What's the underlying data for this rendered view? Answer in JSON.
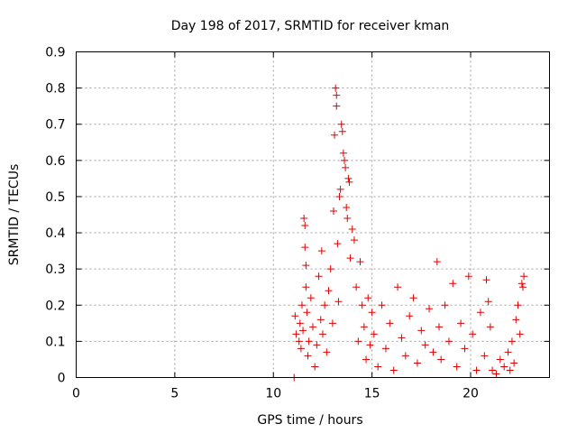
{
  "chart_data": {
    "type": "scatter",
    "title": "Day 198 of 2017, SRMTID for receiver kman",
    "xlabel": "GPS time / hours",
    "ylabel": "SRMTID / TECUs",
    "xlim": [
      0,
      24
    ],
    "ylim": [
      0,
      0.9
    ],
    "xticks": [
      0,
      5,
      10,
      15,
      20
    ],
    "xtick_labels": [
      "0",
      "5",
      "10",
      "15",
      "20"
    ],
    "yticks": [
      0,
      0.1,
      0.2,
      0.3,
      0.4,
      0.5,
      0.6,
      0.7,
      0.8,
      0.9
    ],
    "ytick_labels": [
      "0",
      "0.1",
      "0.2",
      "0.3",
      "0.4",
      "0.5",
      "0.6",
      "0.7",
      "0.8",
      "0.9"
    ],
    "grid": true,
    "marker": "+",
    "color": "#e00000",
    "series": [
      {
        "name": "SRMTID",
        "x": [
          11.05,
          11.1,
          11.15,
          11.3,
          11.35,
          11.4,
          11.45,
          11.5,
          11.55,
          11.6,
          11.6,
          11.65,
          11.65,
          11.7,
          11.75,
          11.8,
          11.9,
          12.0,
          12.1,
          12.2,
          12.3,
          12.4,
          12.45,
          12.5,
          12.6,
          12.7,
          12.8,
          12.9,
          13.0,
          13.05,
          13.1,
          13.15,
          13.2,
          13.2,
          13.25,
          13.3,
          13.35,
          13.4,
          13.45,
          13.5,
          13.55,
          13.6,
          13.65,
          13.7,
          13.75,
          13.8,
          13.85,
          13.9,
          14.0,
          14.1,
          14.2,
          14.3,
          14.4,
          14.5,
          14.6,
          14.7,
          14.8,
          14.9,
          15.0,
          15.1,
          15.3,
          15.5,
          15.7,
          15.9,
          16.1,
          16.3,
          16.5,
          16.7,
          16.9,
          17.1,
          17.3,
          17.5,
          17.7,
          17.9,
          18.1,
          18.3,
          18.4,
          18.5,
          18.7,
          18.9,
          19.1,
          19.3,
          19.5,
          19.7,
          19.9,
          20.1,
          20.3,
          20.5,
          20.7,
          20.8,
          20.9,
          21.0,
          21.1,
          21.3,
          21.5,
          21.7,
          21.9,
          22.0,
          22.1,
          22.2,
          22.3,
          22.4,
          22.5,
          22.6,
          22.65,
          22.7
        ],
        "y": [
          0.0,
          0.17,
          0.12,
          0.1,
          0.15,
          0.08,
          0.2,
          0.13,
          0.44,
          0.42,
          0.36,
          0.31,
          0.25,
          0.18,
          0.06,
          0.1,
          0.22,
          0.14,
          0.03,
          0.09,
          0.28,
          0.16,
          0.35,
          0.12,
          0.2,
          0.07,
          0.24,
          0.3,
          0.15,
          0.46,
          0.67,
          0.8,
          0.78,
          0.75,
          0.37,
          0.21,
          0.5,
          0.52,
          0.7,
          0.68,
          0.62,
          0.6,
          0.58,
          0.47,
          0.44,
          0.55,
          0.54,
          0.33,
          0.41,
          0.38,
          0.25,
          0.1,
          0.32,
          0.2,
          0.14,
          0.05,
          0.22,
          0.09,
          0.18,
          0.12,
          0.03,
          0.2,
          0.08,
          0.15,
          0.02,
          0.25,
          0.11,
          0.06,
          0.17,
          0.22,
          0.04,
          0.13,
          0.09,
          0.19,
          0.07,
          0.32,
          0.14,
          0.05,
          0.2,
          0.1,
          0.26,
          0.03,
          0.15,
          0.08,
          0.28,
          0.12,
          0.02,
          0.18,
          0.06,
          0.27,
          0.21,
          0.14,
          0.02,
          0.01,
          0.05,
          0.03,
          0.07,
          0.02,
          0.1,
          0.04,
          0.16,
          0.2,
          0.12,
          0.26,
          0.25,
          0.28
        ]
      }
    ]
  }
}
